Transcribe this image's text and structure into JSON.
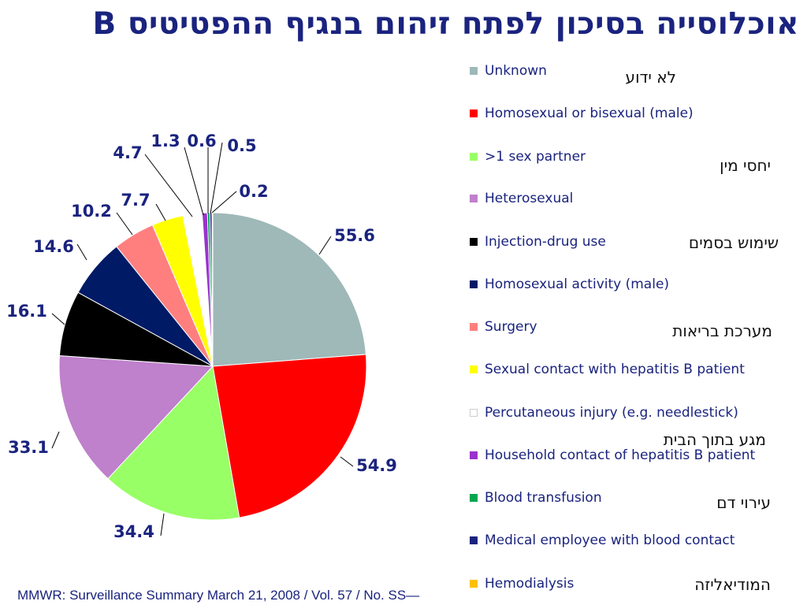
{
  "title": "אוכלוסייה בסיכון לפתח זיהום בנגיף ההפטיטיס B",
  "source": "MMWR: Surveillance Summary March 21, 2008 / Vol. 57 / No. SS—",
  "chart_data": {
    "type": "pie",
    "title": "אוכלוסייה בסיכון לפתח זיהום בנגיף ההפטיטיס B",
    "slices": [
      {
        "label": "Unknown",
        "value": 55.6,
        "color": "#9fb8b8"
      },
      {
        "label": "Homosexual or bisexual (male)",
        "value": 54.9,
        "color": "#ff0000"
      },
      {
        "label": ">1 sex partner",
        "value": 34.4,
        "color": "#99ff66"
      },
      {
        "label": "Heterosexual",
        "value": 33.1,
        "color": "#bf80cc"
      },
      {
        "label": "Injection-drug use",
        "value": 16.1,
        "color": "#000000"
      },
      {
        "label": "Homosexual activity (male)",
        "value": 14.6,
        "color": "#001a66"
      },
      {
        "label": "Surgery",
        "value": 10.2,
        "color": "#ff7f7f"
      },
      {
        "label": "Sexual contact with hepatitis B patient",
        "value": 7.7,
        "color": "#ffff00"
      },
      {
        "label": "Percutaneous injury (e.g. needlestick)",
        "value": 4.7,
        "color": "#ffffff"
      },
      {
        "label": "Household contact of hepatitis B patient",
        "value": 1.3,
        "color": "#9933cc"
      },
      {
        "label": "Blood transfusion",
        "value": 0.6,
        "color": "#00a651"
      },
      {
        "label": "Medical employee with blood contact",
        "value": 0.5,
        "color": "#1a237e"
      },
      {
        "label": "Hemodialysis",
        "value": 0.2,
        "color": "#ffc000"
      }
    ],
    "legend_position": "right"
  },
  "notes": {
    "unknown": "לא ידוע",
    "sex": "יחסי מין",
    "drugs": "שימוש בסמים",
    "health": "מערכת בריאות",
    "household": "מגע בתוך הבית",
    "blood": "עירוי דם",
    "dialysis": "המודיאליזה"
  }
}
